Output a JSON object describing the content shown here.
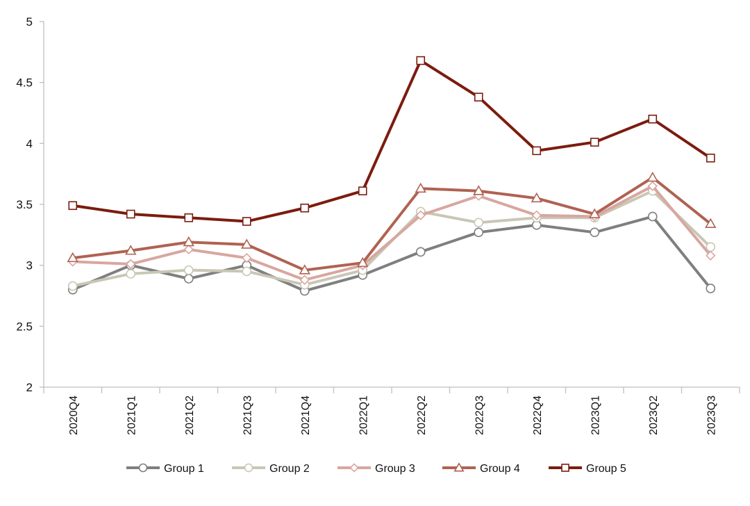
{
  "chart_data": {
    "type": "line",
    "title": "",
    "xlabel": "",
    "ylabel": "",
    "ylim": [
      2,
      5
    ],
    "yticks": [
      "2",
      "2.5",
      "3",
      "3.5",
      "4",
      "4.5",
      "5"
    ],
    "categories": [
      "2020Q4",
      "2021Q1",
      "2021Q2",
      "2021Q3",
      "2021Q4",
      "2022Q1",
      "2022Q2",
      "2022Q3",
      "2022Q4",
      "2023Q1",
      "2023Q2",
      "2023Q3"
    ],
    "grid": false,
    "legend_position": "bottom",
    "series": [
      {
        "name": "Group 1",
        "color": "#7f7f7f",
        "marker": "circle",
        "values": [
          2.8,
          3.0,
          2.89,
          3.0,
          2.79,
          2.92,
          3.11,
          3.27,
          3.33,
          3.27,
          3.4,
          2.81
        ]
      },
      {
        "name": "Group 2",
        "color": "#c9c7b5",
        "marker": "circle",
        "values": [
          2.83,
          2.93,
          2.96,
          2.95,
          2.84,
          2.96,
          3.44,
          3.35,
          3.39,
          3.39,
          3.61,
          3.15
        ]
      },
      {
        "name": "Group 3",
        "color": "#d8a7a0",
        "marker": "diamond",
        "values": [
          3.03,
          3.01,
          3.13,
          3.06,
          2.88,
          3.0,
          3.41,
          3.57,
          3.41,
          3.4,
          3.65,
          3.08
        ]
      },
      {
        "name": "Group 4",
        "color": "#b06252",
        "marker": "triangle",
        "values": [
          3.06,
          3.12,
          3.19,
          3.17,
          2.96,
          3.02,
          3.63,
          3.61,
          3.55,
          3.42,
          3.72,
          3.34
        ]
      },
      {
        "name": "Group 5",
        "color": "#7b1c0f",
        "marker": "square",
        "values": [
          3.49,
          3.42,
          3.39,
          3.36,
          3.47,
          3.61,
          4.68,
          4.38,
          3.94,
          4.01,
          4.2,
          3.88
        ]
      }
    ]
  }
}
